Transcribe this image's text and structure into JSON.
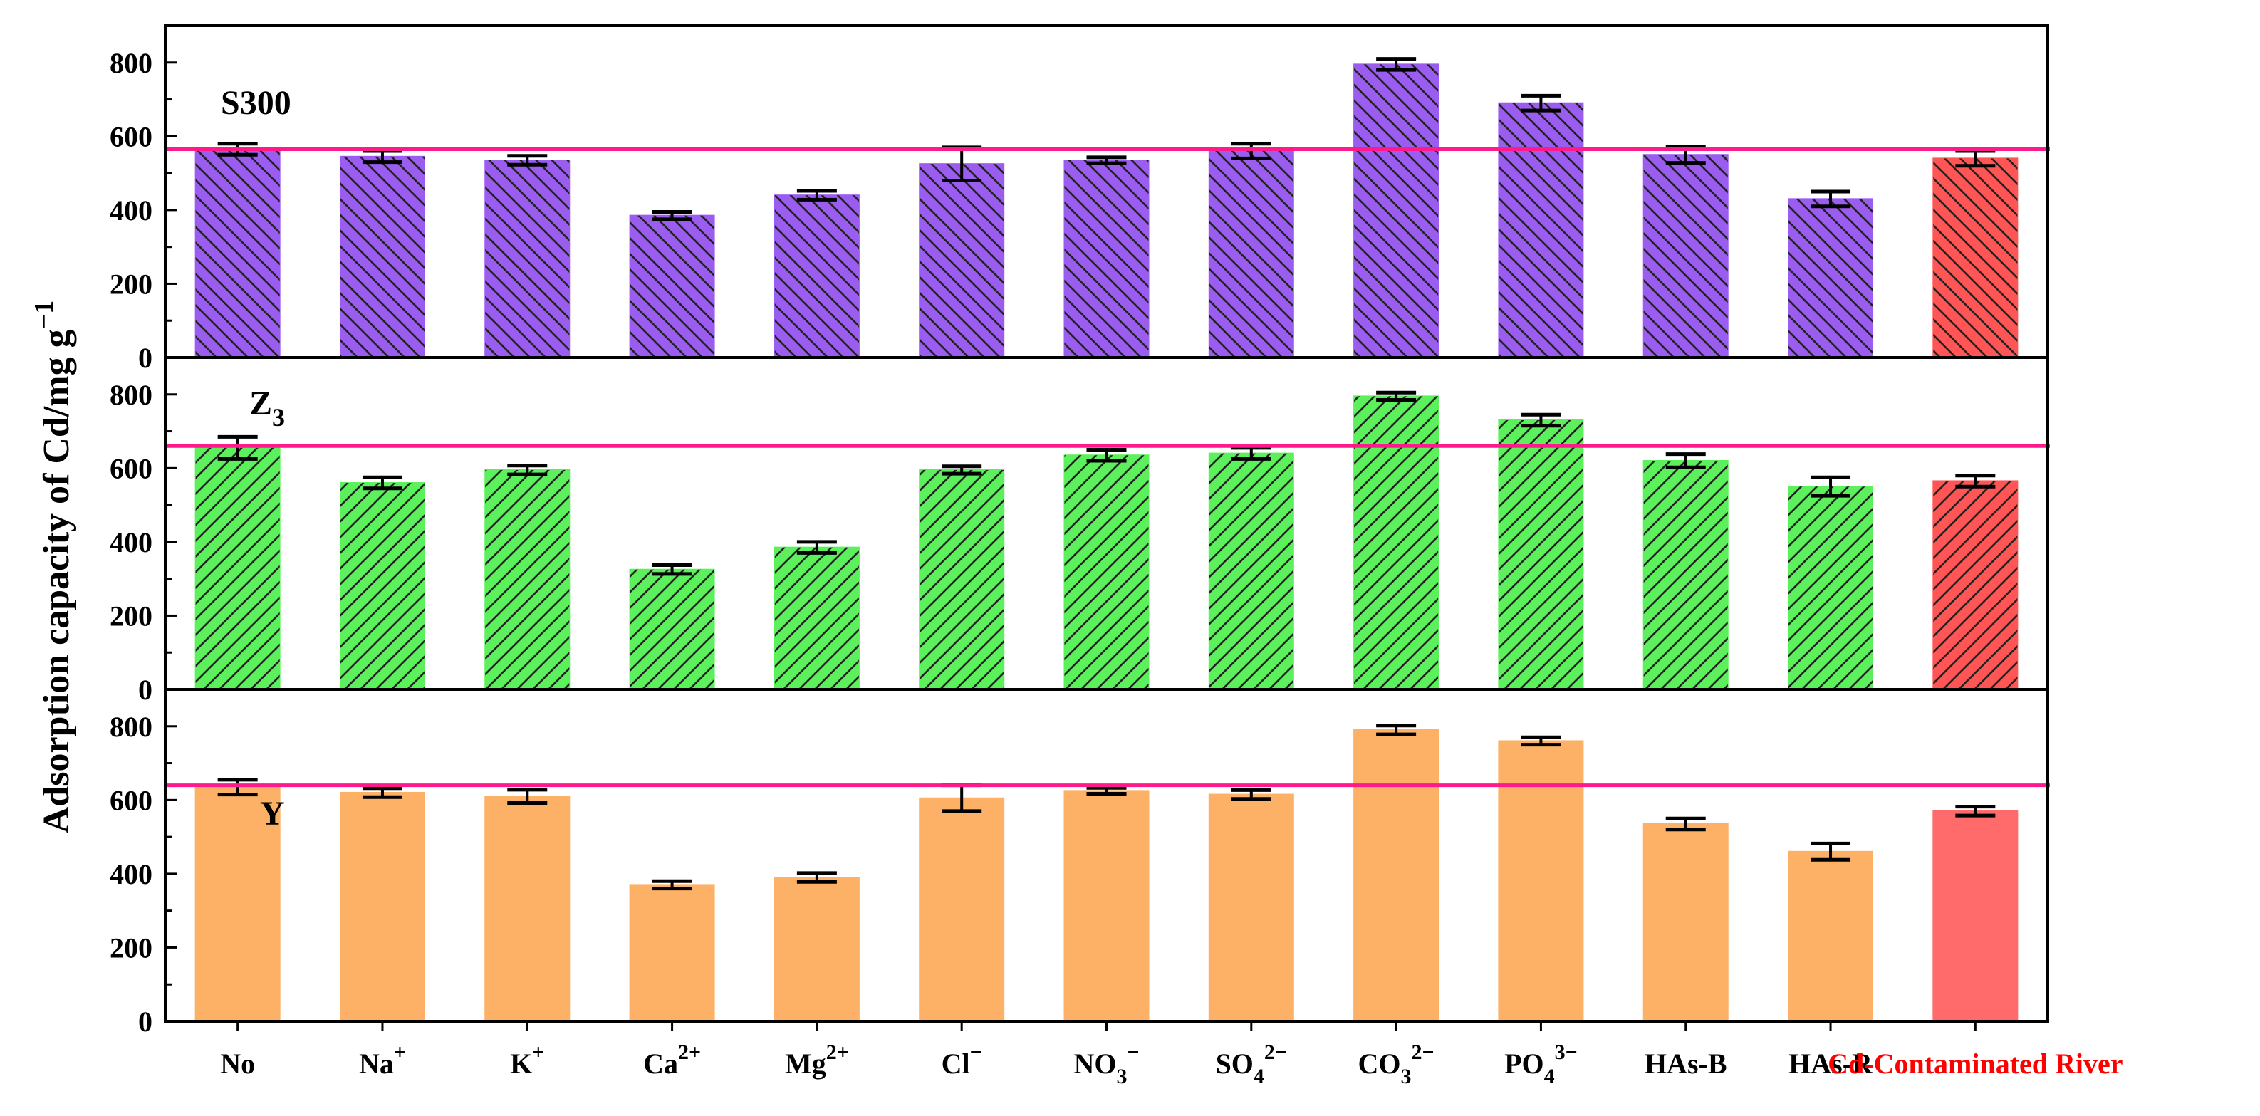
{
  "chart_data": {
    "type": "bar",
    "ylabel": "Adsorption capacity of Cd/mg g",
    "ylabel_sup": "−1",
    "ylim": [
      0,
      900
    ],
    "yticks": [
      0,
      200,
      400,
      600,
      800
    ],
    "categories": [
      {
        "base": "No",
        "sub": "",
        "sup": ""
      },
      {
        "base": "Na",
        "sub": "",
        "sup": "+"
      },
      {
        "base": "K",
        "sub": "",
        "sup": "+"
      },
      {
        "base": "Ca",
        "sub": "",
        "sup": "2+"
      },
      {
        "base": "Mg",
        "sub": "",
        "sup": "2+"
      },
      {
        "base": "Cl",
        "sub": "",
        "sup": "−"
      },
      {
        "base": "NO",
        "sub": "3",
        "sup": "−"
      },
      {
        "base": "SO",
        "sub": "4",
        "sup": "2−"
      },
      {
        "base": "CO",
        "sub": "3",
        "sup": "2−"
      },
      {
        "base": "PO",
        "sub": "4",
        "sup": "3−"
      },
      {
        "base": "HAs-B",
        "sub": "",
        "sup": ""
      },
      {
        "base": "HAs-R",
        "sub": "",
        "sup": ""
      },
      {
        "base": "Cd-Contaminated River",
        "sub": "",
        "sup": "",
        "highlight": true
      }
    ],
    "panels": [
      {
        "name": "S300",
        "label_base": "S300",
        "label_sub": "",
        "color": "#9b5cf0",
        "highlight_color": "#ff5555",
        "hatch": "backslash",
        "reference_line": 565,
        "values": [
          565,
          545,
          535,
          385,
          440,
          525,
          535,
          560,
          795,
          690,
          550,
          430,
          540
        ],
        "errors": [
          15,
          15,
          12,
          10,
          12,
          45,
          8,
          20,
          15,
          20,
          22,
          20,
          20
        ]
      },
      {
        "name": "Z3",
        "label_base": "Z",
        "label_sub": "3",
        "color": "#5cf05c",
        "highlight_color": "#ff5555",
        "hatch": "slash",
        "reference_line": 660,
        "values": [
          655,
          560,
          595,
          325,
          385,
          595,
          635,
          640,
          795,
          730,
          620,
          550,
          565
        ],
        "errors": [
          30,
          15,
          12,
          12,
          15,
          10,
          15,
          15,
          10,
          15,
          18,
          25,
          15
        ]
      },
      {
        "name": "Y",
        "label_base": "Y",
        "label_sub": "",
        "color": "#fdb166",
        "highlight_color": "#ff6a6a",
        "hatch": "none",
        "reference_line": 640,
        "values": [
          635,
          620,
          610,
          370,
          390,
          605,
          625,
          615,
          790,
          760,
          535,
          460,
          570
        ],
        "errors": [
          20,
          12,
          18,
          10,
          12,
          35,
          8,
          12,
          12,
          10,
          15,
          22,
          12
        ]
      }
    ],
    "reference_line_color": "#ff1a8c",
    "highlight_label_color": "#ff0000"
  }
}
